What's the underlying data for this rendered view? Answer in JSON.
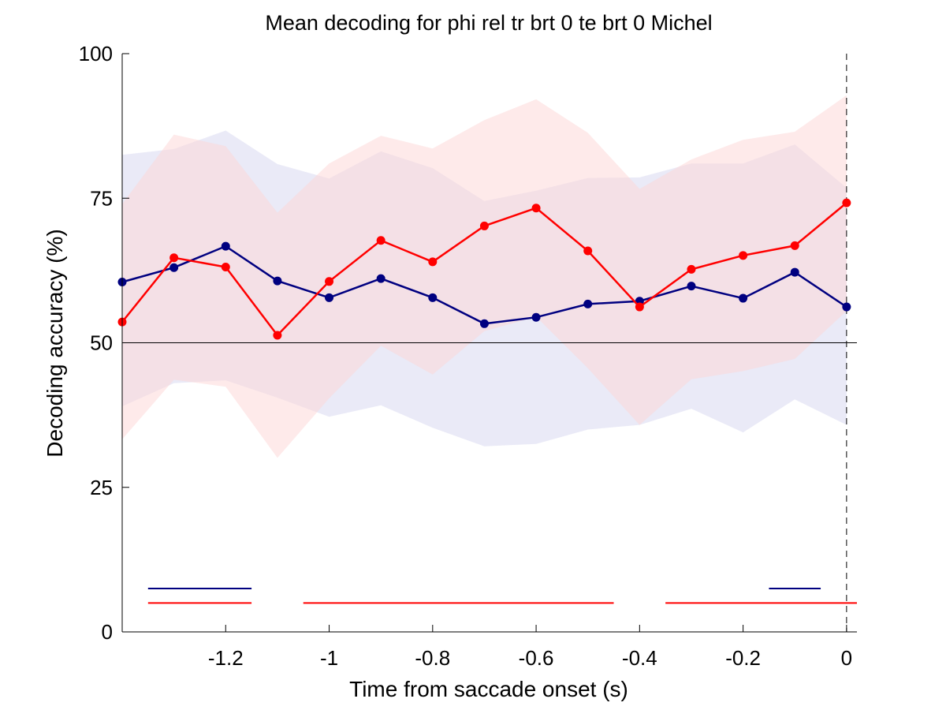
{
  "chart_data": {
    "type": "line",
    "title": "Mean decoding for phi rel tr brt 0 te brt 0  Michel",
    "xlabel": "Time from saccade onset (s)",
    "ylabel": "Decoding accuracy (%)",
    "xlim": [
      -1.4,
      0.02
    ],
    "ylim": [
      0,
      100
    ],
    "x_ticks": [
      -1.2,
      -1,
      -0.8,
      -0.6,
      -0.4,
      -0.2,
      0
    ],
    "x_tick_labels": [
      "-1.2",
      "-1",
      "-0.8",
      "-0.6",
      "-0.4",
      "-0.2",
      "0"
    ],
    "y_ticks": [
      0,
      25,
      50,
      75,
      100
    ],
    "y_tick_labels": [
      "0",
      "25",
      "50",
      "75",
      "100"
    ],
    "grid": false,
    "chance_level": 50,
    "event_line_x": 0,
    "x": [
      -1.4,
      -1.3,
      -1.2,
      -1.1,
      -1.0,
      -0.9,
      -0.8,
      -0.7,
      -0.6,
      -0.5,
      -0.4,
      -0.3,
      -0.2,
      -0.1,
      0.0
    ],
    "series": [
      {
        "color": "#000080",
        "values": [
          60.5,
          63,
          66.7,
          60.7,
          57.8,
          61.1,
          57.8,
          53.3,
          54.4,
          56.7,
          57.2,
          59.8,
          57.7,
          62.2,
          56.2
        ],
        "band_upper": [
          82.5,
          83.5,
          86.7,
          80.9,
          78.4,
          83.1,
          80.2,
          74.5,
          76.3,
          78.5,
          78.6,
          81.0,
          81.0,
          84.3,
          76.8
        ],
        "band_lower": [
          39,
          43,
          43.5,
          40.5,
          37.2,
          39.2,
          35.3,
          32.1,
          32.5,
          35,
          35.8,
          38.6,
          34.5,
          40.2,
          35.8
        ],
        "band_color": "#d8d8f0",
        "significance": [
          [
            -1.35,
            -1.15
          ],
          [
            -0.15,
            -0.05
          ]
        ],
        "significance_y": 7.5
      },
      {
        "color": "#ff0000",
        "values": [
          53.6,
          64.7,
          63.1,
          51.3,
          60.6,
          67.7,
          64.0,
          70.2,
          73.3,
          65.9,
          56.2,
          62.7,
          65.1,
          66.8,
          74.2
        ],
        "band_upper": [
          74,
          86,
          84,
          72.5,
          81,
          85.8,
          83.6,
          88.5,
          92.1,
          86.3,
          76.6,
          81.7,
          85.1,
          86.5,
          92.8
        ],
        "band_lower": [
          33.3,
          43.6,
          42.4,
          30.1,
          40.4,
          49.5,
          44.5,
          52.0,
          54.5,
          45.6,
          35.8,
          43.7,
          45.1,
          47.2,
          55.5
        ],
        "band_color": "#fdd6d6",
        "significance": [
          [
            -1.35,
            -1.15
          ],
          [
            -1.05,
            -0.45
          ],
          [
            -0.35,
            0.02
          ]
        ],
        "significance_y": 5
      }
    ]
  }
}
